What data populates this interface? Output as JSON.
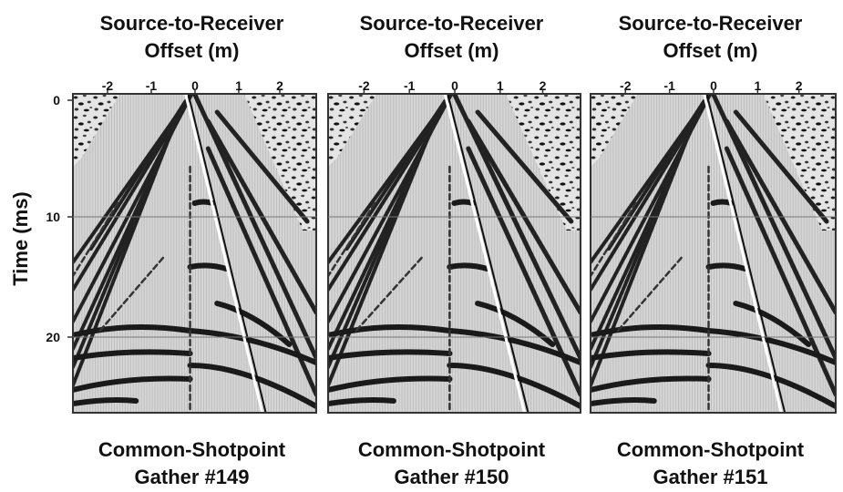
{
  "y_axis": {
    "label": "Time (ms)",
    "ticks": [
      "0",
      "10",
      "20"
    ]
  },
  "panels": [
    {
      "title_lines": [
        "Source-to-Receiver",
        "Offset (m)"
      ],
      "x_ticks": [
        "-2",
        "-1",
        "0",
        "1",
        "2"
      ],
      "caption_lines": [
        "Common-Shotpoint",
        "Gather #149"
      ]
    },
    {
      "title_lines": [
        "Source-to-Receiver",
        "Offset (m)"
      ],
      "x_ticks": [
        "-2",
        "-1",
        "0",
        "1",
        "2"
      ],
      "caption_lines": [
        "Common-Shotpoint",
        "Gather #150"
      ]
    },
    {
      "title_lines": [
        "Source-to-Receiver",
        "Offset (m)"
      ],
      "x_ticks": [
        "-2",
        "-1",
        "0",
        "1",
        "2"
      ],
      "caption_lines": [
        "Common-Shotpoint",
        "Gather #151"
      ]
    }
  ]
}
